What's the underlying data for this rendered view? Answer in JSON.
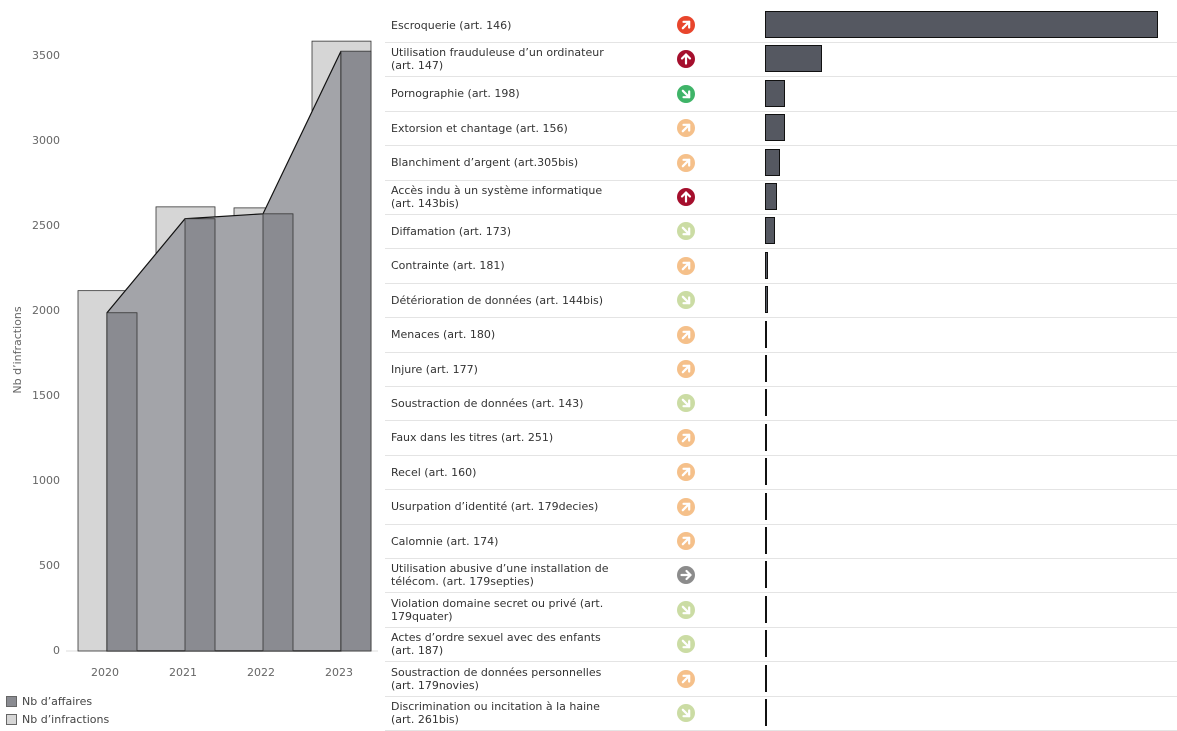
{
  "chart_data": [
    {
      "type": "bar",
      "ylabel": "Nb d’infractions",
      "categories": [
        "2020",
        "2021",
        "2022",
        "2023"
      ],
      "series": [
        {
          "name": "Nb d’affaires",
          "color": "#8a8b91",
          "values": [
            1990,
            2543,
            2572,
            3529
          ]
        },
        {
          "name": "Nb d’infractions",
          "color": "#d6d6d6",
          "values": [
            2120,
            2613,
            2607,
            3588
          ]
        }
      ],
      "area_color": "#a3a4a9",
      "ylim": [
        0,
        3830
      ],
      "yticks": [
        0,
        500,
        1000,
        1500,
        2000,
        2500,
        3000,
        3500
      ]
    },
    {
      "type": "hbar",
      "color": "#555861",
      "xlim": [
        0,
        400
      ],
      "categories": [
        "Escroquerie (art. 146)",
        "Utilisation frauduleuse d’un ordinateur (art. 147)",
        "Pornographie (art. 198)",
        "Extorsion et chantage (art. 156)",
        "Blanchiment d’argent (art.305bis)",
        "Accès indu à un système informatique (art. 143bis)",
        "Diffamation (art. 173)",
        "Contrainte (art. 181)",
        "Détérioration de données (art. 144bis)",
        "Menaces (art. 180)",
        "Injure (art. 177)",
        "Soustraction de données (art. 143)",
        "Faux dans les titres (art. 251)",
        "Recel (art. 160)",
        "Usurpation d’identité (art. 179decies)",
        "Calomnie (art. 174)",
        "Utilisation abusive d’une installation de télécom. (art. 179septies)",
        "Violation domaine secret ou privé (art. 179quater)",
        "Actes d’ordre sexuel avec des enfants (art. 187)",
        "Soustraction de données personnelles (art. 179novies)",
        "Discrimination ou incitation à la haine (art. 261bis)"
      ],
      "values": [
        393,
        57,
        20,
        20,
        15,
        12,
        10,
        3,
        3,
        2,
        2,
        1,
        1,
        1,
        1,
        1,
        1,
        1,
        1,
        1,
        1
      ],
      "trend_direction": [
        45,
        90,
        -45,
        45,
        45,
        90,
        -45,
        45,
        -45,
        45,
        45,
        -45,
        45,
        45,
        45,
        45,
        0,
        -45,
        -45,
        45,
        -45
      ],
      "trend_color": [
        "#e8452c",
        "#a50f2d",
        "#3fb468",
        "#f5c08a",
        "#f5c08a",
        "#a50f2d",
        "#cbdca4",
        "#f5c08a",
        "#cbdca4",
        "#f5c08a",
        "#f5c08a",
        "#cbdca4",
        "#f5c08a",
        "#f5c08a",
        "#f5c08a",
        "#f5c08a",
        "#8c8c8c",
        "#cbdca4",
        "#cbdca4",
        "#f5c08a",
        "#cbdca4"
      ]
    }
  ]
}
